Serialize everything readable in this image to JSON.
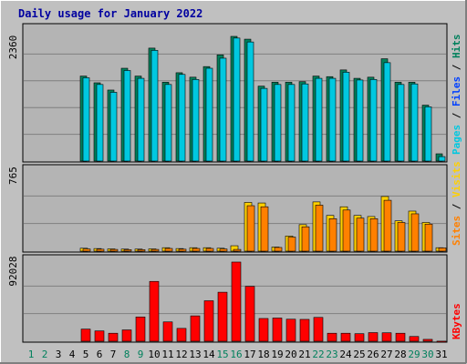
{
  "title": "Daily usage for January 2022",
  "colors": {
    "background": "#c0c0c0",
    "plot_background": "#b4b4b4",
    "title": "#0000a0",
    "hits": "#00805c",
    "files": "#0040ff",
    "pages": "#00c8e0",
    "visits": "#ffd000",
    "sites": "#ff8000",
    "kbytes": "#ff0000",
    "weekend_label": "#00805c",
    "weekday_label": "#000000",
    "grid": "#7f7f7f"
  },
  "chart_data": [
    {
      "type": "bar",
      "panel": "top",
      "ylabel_parts": [
        "Pages",
        "Files",
        "Hits"
      ],
      "ylabel_separator": " / ",
      "ymax_label": "2360",
      "ylim": [
        0,
        2360
      ],
      "categories": [
        "1",
        "2",
        "3",
        "4",
        "5",
        "6",
        "7",
        "8",
        "9",
        "10",
        "11",
        "12",
        "13",
        "14",
        "15",
        "16",
        "17",
        "18",
        "19",
        "20",
        "21",
        "22",
        "23",
        "24",
        "25",
        "26",
        "27",
        "28",
        "29",
        "30",
        "31"
      ],
      "series": [
        {
          "name": "Hits",
          "values": [
            0,
            0,
            0,
            0,
            1520,
            1400,
            1270,
            1660,
            1520,
            2020,
            1410,
            1580,
            1500,
            1690,
            1900,
            2230,
            2180,
            1340,
            1410,
            1410,
            1420,
            1520,
            1510,
            1630,
            1480,
            1500,
            1830,
            1410,
            1410,
            1000,
            130
          ]
        },
        {
          "name": "Files",
          "values": [
            0,
            0,
            0,
            0,
            0,
            0,
            0,
            0,
            0,
            0,
            0,
            0,
            0,
            0,
            0,
            0,
            0,
            0,
            0,
            0,
            0,
            0,
            0,
            0,
            0,
            0,
            0,
            0,
            0,
            0,
            0
          ]
        },
        {
          "name": "Pages",
          "values": [
            0,
            0,
            0,
            0,
            1490,
            1370,
            1230,
            1620,
            1480,
            1980,
            1370,
            1550,
            1460,
            1660,
            1840,
            2200,
            2130,
            1300,
            1370,
            1370,
            1380,
            1480,
            1480,
            1590,
            1450,
            1460,
            1760,
            1370,
            1380,
            970,
            80
          ]
        }
      ]
    },
    {
      "type": "bar",
      "panel": "middle",
      "ylabel_parts": [
        "Sites",
        "Visits"
      ],
      "ylabel_separator": " / ",
      "ymax_label": "765",
      "ylim": [
        0,
        765
      ],
      "categories": [
        "1",
        "2",
        "3",
        "4",
        "5",
        "6",
        "7",
        "8",
        "9",
        "10",
        "11",
        "12",
        "13",
        "14",
        "15",
        "16",
        "17",
        "18",
        "19",
        "20",
        "21",
        "22",
        "23",
        "24",
        "25",
        "26",
        "27",
        "28",
        "29",
        "30",
        "31"
      ],
      "series": [
        {
          "name": "Visits",
          "values": [
            0,
            0,
            0,
            0,
            27,
            24,
            21,
            19,
            19,
            21,
            32,
            24,
            32,
            32,
            27,
            50,
            450,
            445,
            38,
            140,
            245,
            455,
            330,
            410,
            330,
            320,
            505,
            280,
            370,
            265,
            32
          ]
        },
        {
          "name": "Sites",
          "values": [
            0,
            0,
            0,
            0,
            20,
            18,
            16,
            14,
            14,
            16,
            25,
            18,
            25,
            25,
            20,
            16,
            420,
            410,
            34,
            130,
            225,
            425,
            300,
            380,
            305,
            300,
            470,
            265,
            345,
            250,
            30
          ]
        }
      ]
    },
    {
      "type": "bar",
      "panel": "bottom",
      "ylabel_parts": [
        "KBytes"
      ],
      "ylabel_separator": "",
      "ymax_label": "92028",
      "ylim": [
        0,
        92028
      ],
      "categories": [
        "1",
        "2",
        "3",
        "4",
        "5",
        "6",
        "7",
        "8",
        "9",
        "10",
        "11",
        "12",
        "13",
        "14",
        "15",
        "16",
        "17",
        "18",
        "19",
        "20",
        "21",
        "22",
        "23",
        "24",
        "25",
        "26",
        "27",
        "28",
        "29",
        "30",
        "31"
      ],
      "weekend_days": [
        1,
        2,
        8,
        9,
        15,
        16,
        22,
        23,
        29,
        30
      ],
      "series": [
        {
          "name": "KBytes",
          "values": [
            0,
            0,
            0,
            0,
            13500,
            11500,
            8900,
            12600,
            27000,
            66500,
            21500,
            14300,
            28200,
            45000,
            54500,
            88000,
            61000,
            25300,
            25800,
            24500,
            24300,
            26500,
            8900,
            8900,
            8400,
            9600,
            9400,
            8900,
            5300,
            2100,
            100
          ]
        }
      ]
    }
  ]
}
